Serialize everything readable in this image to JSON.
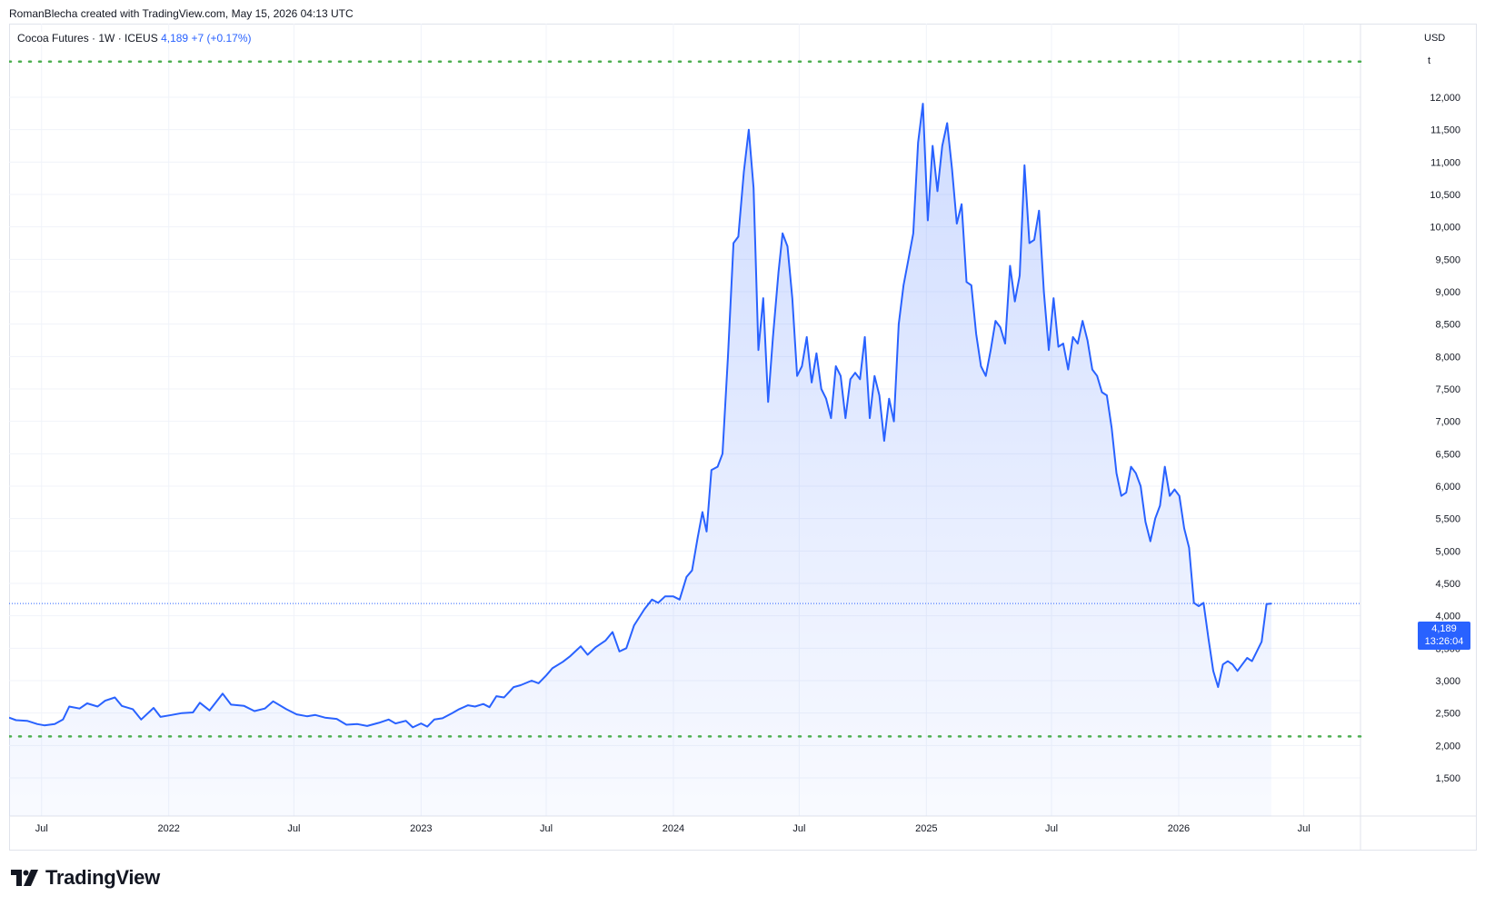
{
  "header": {
    "created_text": "RomanBlecha created with TradingView.com, May 15, 2026 04:13 UTC"
  },
  "legend": {
    "symbol_text": "Cocoa Futures · 1W · ICEUS",
    "last_value_text": "4,189",
    "change_text": "+7 (+0.17%)"
  },
  "price_axis": {
    "currency": "USD",
    "unit": "t"
  },
  "price_tag": {
    "price": "4,189",
    "countdown": "13:26:04"
  },
  "brand": {
    "name": "TradingView"
  },
  "colors": {
    "line": "#2962ff",
    "area": "#2962ff",
    "grid": "#f0f3fa",
    "level_lines": "#4caf50",
    "axis_text": "#131722"
  },
  "icons": [
    "tradingview-logo-icon"
  ],
  "chart_data": {
    "type": "area",
    "title": "",
    "xlabel": "",
    "ylabel": "",
    "ylim": [
      1150,
      12650
    ],
    "y_ticks": [
      "1,500",
      "2,000",
      "2,500",
      "3,000",
      "3,500",
      "4,000",
      "4,500",
      "5,000",
      "5,500",
      "6,000",
      "6,500",
      "7,000",
      "7,500",
      "8,000",
      "8,500",
      "9,000",
      "9,500",
      "10,000",
      "10,500",
      "11,000",
      "11,500",
      "12,000"
    ],
    "x_ticks": [
      {
        "date": "2021-07-01",
        "label": "Jul"
      },
      {
        "date": "2022-01-01",
        "label": "2022"
      },
      {
        "date": "2022-07-01",
        "label": "Jul"
      },
      {
        "date": "2023-01-01",
        "label": "2023"
      },
      {
        "date": "2023-07-01",
        "label": "Jul"
      },
      {
        "date": "2024-01-01",
        "label": "2024"
      },
      {
        "date": "2024-07-01",
        "label": "Jul"
      },
      {
        "date": "2025-01-01",
        "label": "2025"
      },
      {
        "date": "2025-07-01",
        "label": "Jul"
      },
      {
        "date": "2026-01-01",
        "label": "2026"
      },
      {
        "date": "2026-07-01",
        "label": "Jul"
      }
    ],
    "x_range": [
      "2021-05-15",
      "2026-09-21"
    ],
    "grid": true,
    "horizontal_levels": [
      12550,
      2140
    ],
    "last_price_line": 4189,
    "series": [
      {
        "points": [
          [
            "2021-05-15",
            2430
          ],
          [
            "2021-05-25",
            2390
          ],
          [
            "2021-06-10",
            2380
          ],
          [
            "2021-06-25",
            2330
          ],
          [
            "2021-07-05",
            2310
          ],
          [
            "2021-07-20",
            2330
          ],
          [
            "2021-08-01",
            2400
          ],
          [
            "2021-08-10",
            2600
          ],
          [
            "2021-08-25",
            2570
          ],
          [
            "2021-09-05",
            2650
          ],
          [
            "2021-09-20",
            2600
          ],
          [
            "2021-10-01",
            2690
          ],
          [
            "2021-10-15",
            2740
          ],
          [
            "2021-10-25",
            2610
          ],
          [
            "2021-11-10",
            2560
          ],
          [
            "2021-11-22",
            2400
          ],
          [
            "2021-12-10",
            2580
          ],
          [
            "2021-12-20",
            2440
          ],
          [
            "2022-01-05",
            2470
          ],
          [
            "2022-01-20",
            2500
          ],
          [
            "2022-02-05",
            2510
          ],
          [
            "2022-02-15",
            2660
          ],
          [
            "2022-03-01",
            2540
          ],
          [
            "2022-03-20",
            2800
          ],
          [
            "2022-04-01",
            2630
          ],
          [
            "2022-04-20",
            2610
          ],
          [
            "2022-05-05",
            2530
          ],
          [
            "2022-05-20",
            2570
          ],
          [
            "2022-06-01",
            2680
          ],
          [
            "2022-06-20",
            2560
          ],
          [
            "2022-07-05",
            2480
          ],
          [
            "2022-07-20",
            2450
          ],
          [
            "2022-08-01",
            2470
          ],
          [
            "2022-08-15",
            2430
          ],
          [
            "2022-09-01",
            2410
          ],
          [
            "2022-09-15",
            2320
          ],
          [
            "2022-10-01",
            2330
          ],
          [
            "2022-10-15",
            2300
          ],
          [
            "2022-11-01",
            2350
          ],
          [
            "2022-11-15",
            2400
          ],
          [
            "2022-11-25",
            2340
          ],
          [
            "2022-12-10",
            2380
          ],
          [
            "2022-12-20",
            2280
          ],
          [
            "2023-01-01",
            2340
          ],
          [
            "2023-01-10",
            2290
          ],
          [
            "2023-01-20",
            2400
          ],
          [
            "2023-02-01",
            2420
          ],
          [
            "2023-02-15",
            2500
          ],
          [
            "2023-02-25",
            2560
          ],
          [
            "2023-03-10",
            2620
          ],
          [
            "2023-03-20",
            2600
          ],
          [
            "2023-04-01",
            2640
          ],
          [
            "2023-04-10",
            2590
          ],
          [
            "2023-04-20",
            2760
          ],
          [
            "2023-05-01",
            2740
          ],
          [
            "2023-05-15",
            2900
          ],
          [
            "2023-05-25",
            2930
          ],
          [
            "2023-06-10",
            3000
          ],
          [
            "2023-06-20",
            2960
          ],
          [
            "2023-07-01",
            3080
          ],
          [
            "2023-07-10",
            3190
          ],
          [
            "2023-07-25",
            3290
          ],
          [
            "2023-08-05",
            3380
          ],
          [
            "2023-08-20",
            3530
          ],
          [
            "2023-08-30",
            3400
          ],
          [
            "2023-09-10",
            3510
          ],
          [
            "2023-09-25",
            3620
          ],
          [
            "2023-10-05",
            3750
          ],
          [
            "2023-10-15",
            3450
          ],
          [
            "2023-10-25",
            3500
          ],
          [
            "2023-11-05",
            3850
          ],
          [
            "2023-11-20",
            4100
          ],
          [
            "2023-12-01",
            4250
          ],
          [
            "2023-12-10",
            4200
          ],
          [
            "2023-12-20",
            4300
          ],
          [
            "2024-01-01",
            4300
          ],
          [
            "2024-01-10",
            4250
          ],
          [
            "2024-01-20",
            4600
          ],
          [
            "2024-01-28",
            4700
          ],
          [
            "2024-02-05",
            5200
          ],
          [
            "2024-02-12",
            5600
          ],
          [
            "2024-02-18",
            5300
          ],
          [
            "2024-02-25",
            6250
          ],
          [
            "2024-03-05",
            6300
          ],
          [
            "2024-03-12",
            6500
          ],
          [
            "2024-03-20",
            8000
          ],
          [
            "2024-03-28",
            9750
          ],
          [
            "2024-04-04",
            9850
          ],
          [
            "2024-04-12",
            10850
          ],
          [
            "2024-04-19",
            11500
          ],
          [
            "2024-04-26",
            10600
          ],
          [
            "2024-05-03",
            8100
          ],
          [
            "2024-05-10",
            8900
          ],
          [
            "2024-05-17",
            7300
          ],
          [
            "2024-05-24",
            8300
          ],
          [
            "2024-06-01",
            9300
          ],
          [
            "2024-06-07",
            9900
          ],
          [
            "2024-06-14",
            9700
          ],
          [
            "2024-06-21",
            8900
          ],
          [
            "2024-06-28",
            7700
          ],
          [
            "2024-07-05",
            7850
          ],
          [
            "2024-07-12",
            8300
          ],
          [
            "2024-07-19",
            7600
          ],
          [
            "2024-07-26",
            8050
          ],
          [
            "2024-08-02",
            7500
          ],
          [
            "2024-08-09",
            7350
          ],
          [
            "2024-08-16",
            7050
          ],
          [
            "2024-08-23",
            7850
          ],
          [
            "2024-08-30",
            7700
          ],
          [
            "2024-09-06",
            7050
          ],
          [
            "2024-09-13",
            7650
          ],
          [
            "2024-09-20",
            7750
          ],
          [
            "2024-09-27",
            7650
          ],
          [
            "2024-10-04",
            8300
          ],
          [
            "2024-10-11",
            7050
          ],
          [
            "2024-10-18",
            7700
          ],
          [
            "2024-10-25",
            7400
          ],
          [
            "2024-11-01",
            6700
          ],
          [
            "2024-11-08",
            7350
          ],
          [
            "2024-11-15",
            7000
          ],
          [
            "2024-11-22",
            8500
          ],
          [
            "2024-11-29",
            9100
          ],
          [
            "2024-12-06",
            9500
          ],
          [
            "2024-12-13",
            9900
          ],
          [
            "2024-12-20",
            11300
          ],
          [
            "2024-12-27",
            11900
          ],
          [
            "2025-01-03",
            10100
          ],
          [
            "2025-01-10",
            11250
          ],
          [
            "2025-01-17",
            10550
          ],
          [
            "2025-01-24",
            11250
          ],
          [
            "2025-01-31",
            11600
          ],
          [
            "2025-02-07",
            10900
          ],
          [
            "2025-02-14",
            10050
          ],
          [
            "2025-02-21",
            10350
          ],
          [
            "2025-02-28",
            9150
          ],
          [
            "2025-03-07",
            9100
          ],
          [
            "2025-03-14",
            8350
          ],
          [
            "2025-03-21",
            7850
          ],
          [
            "2025-03-28",
            7700
          ],
          [
            "2025-04-04",
            8100
          ],
          [
            "2025-04-11",
            8550
          ],
          [
            "2025-04-18",
            8450
          ],
          [
            "2025-04-25",
            8200
          ],
          [
            "2025-05-02",
            9400
          ],
          [
            "2025-05-09",
            8850
          ],
          [
            "2025-05-16",
            9250
          ],
          [
            "2025-05-23",
            10950
          ],
          [
            "2025-05-30",
            9750
          ],
          [
            "2025-06-06",
            9800
          ],
          [
            "2025-06-13",
            10250
          ],
          [
            "2025-06-20",
            9000
          ],
          [
            "2025-06-27",
            8100
          ],
          [
            "2025-07-04",
            8900
          ],
          [
            "2025-07-11",
            8150
          ],
          [
            "2025-07-18",
            8200
          ],
          [
            "2025-07-25",
            7800
          ],
          [
            "2025-08-01",
            8300
          ],
          [
            "2025-08-08",
            8200
          ],
          [
            "2025-08-15",
            8550
          ],
          [
            "2025-08-22",
            8250
          ],
          [
            "2025-08-29",
            7800
          ],
          [
            "2025-09-05",
            7700
          ],
          [
            "2025-09-12",
            7450
          ],
          [
            "2025-09-19",
            7400
          ],
          [
            "2025-09-26",
            6900
          ],
          [
            "2025-10-03",
            6200
          ],
          [
            "2025-10-10",
            5850
          ],
          [
            "2025-10-17",
            5900
          ],
          [
            "2025-10-24",
            6300
          ],
          [
            "2025-10-31",
            6200
          ],
          [
            "2025-11-07",
            6000
          ],
          [
            "2025-11-14",
            5450
          ],
          [
            "2025-11-21",
            5150
          ],
          [
            "2025-11-28",
            5500
          ],
          [
            "2025-12-05",
            5700
          ],
          [
            "2025-12-12",
            6300
          ],
          [
            "2025-12-19",
            5850
          ],
          [
            "2025-12-26",
            5950
          ],
          [
            "2026-01-02",
            5850
          ],
          [
            "2026-01-09",
            5350
          ],
          [
            "2026-01-16",
            5050
          ],
          [
            "2026-01-23",
            4200
          ],
          [
            "2026-01-30",
            4150
          ],
          [
            "2026-02-06",
            4200
          ],
          [
            "2026-02-13",
            3650
          ],
          [
            "2026-02-20",
            3150
          ],
          [
            "2026-02-27",
            2900
          ],
          [
            "2026-03-06",
            3250
          ],
          [
            "2026-03-13",
            3300
          ],
          [
            "2026-03-20",
            3250
          ],
          [
            "2026-03-27",
            3150
          ],
          [
            "2026-04-03",
            3250
          ],
          [
            "2026-04-10",
            3350
          ],
          [
            "2026-04-17",
            3300
          ],
          [
            "2026-04-24",
            3450
          ],
          [
            "2026-05-01",
            3600
          ],
          [
            "2026-05-08",
            4182
          ],
          [
            "2026-05-15",
            4189
          ]
        ]
      }
    ]
  }
}
